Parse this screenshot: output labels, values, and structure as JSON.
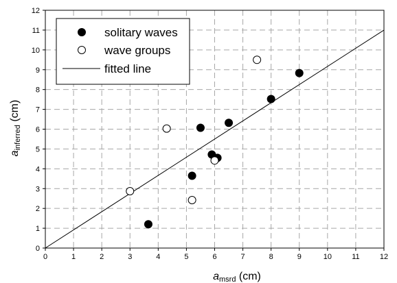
{
  "chart_data": {
    "type": "scatter",
    "xlabel_main": "a",
    "xlabel_sub": "msrd",
    "xlabel_unit": " (cm)",
    "ylabel_main": "a",
    "ylabel_sub": "inferred",
    "ylabel_unit": " (cm)",
    "xlim": [
      0,
      12
    ],
    "ylim": [
      0,
      12
    ],
    "xticks": [
      0,
      1,
      2,
      3,
      4,
      5,
      6,
      7,
      8,
      9,
      10,
      11,
      12
    ],
    "yticks": [
      0,
      1,
      2,
      3,
      4,
      5,
      6,
      7,
      8,
      9,
      10,
      11,
      12
    ],
    "grid": true,
    "legend_position": "top-left",
    "series": [
      {
        "name": "solitary waves",
        "marker": "filled-circle",
        "color": "#000000",
        "points": [
          {
            "x": 3.65,
            "y": 1.2
          },
          {
            "x": 5.2,
            "y": 3.65
          },
          {
            "x": 5.5,
            "y": 6.07
          },
          {
            "x": 5.9,
            "y": 4.72
          },
          {
            "x": 6.1,
            "y": 4.55
          },
          {
            "x": 6.5,
            "y": 6.32
          },
          {
            "x": 8.0,
            "y": 7.52
          },
          {
            "x": 9.0,
            "y": 8.83
          }
        ]
      },
      {
        "name": "wave groups",
        "marker": "open-circle",
        "color": "#000000",
        "points": [
          {
            "x": 3.0,
            "y": 2.87
          },
          {
            "x": 4.3,
            "y": 6.03
          },
          {
            "x": 5.2,
            "y": 2.42
          },
          {
            "x": 6.0,
            "y": 4.42
          },
          {
            "x": 7.5,
            "y": 9.5
          }
        ]
      },
      {
        "name": "fitted line",
        "type": "line",
        "color": "#000000",
        "points": [
          {
            "x": 0,
            "y": 0
          },
          {
            "x": 12,
            "y": 11
          }
        ]
      }
    ]
  }
}
